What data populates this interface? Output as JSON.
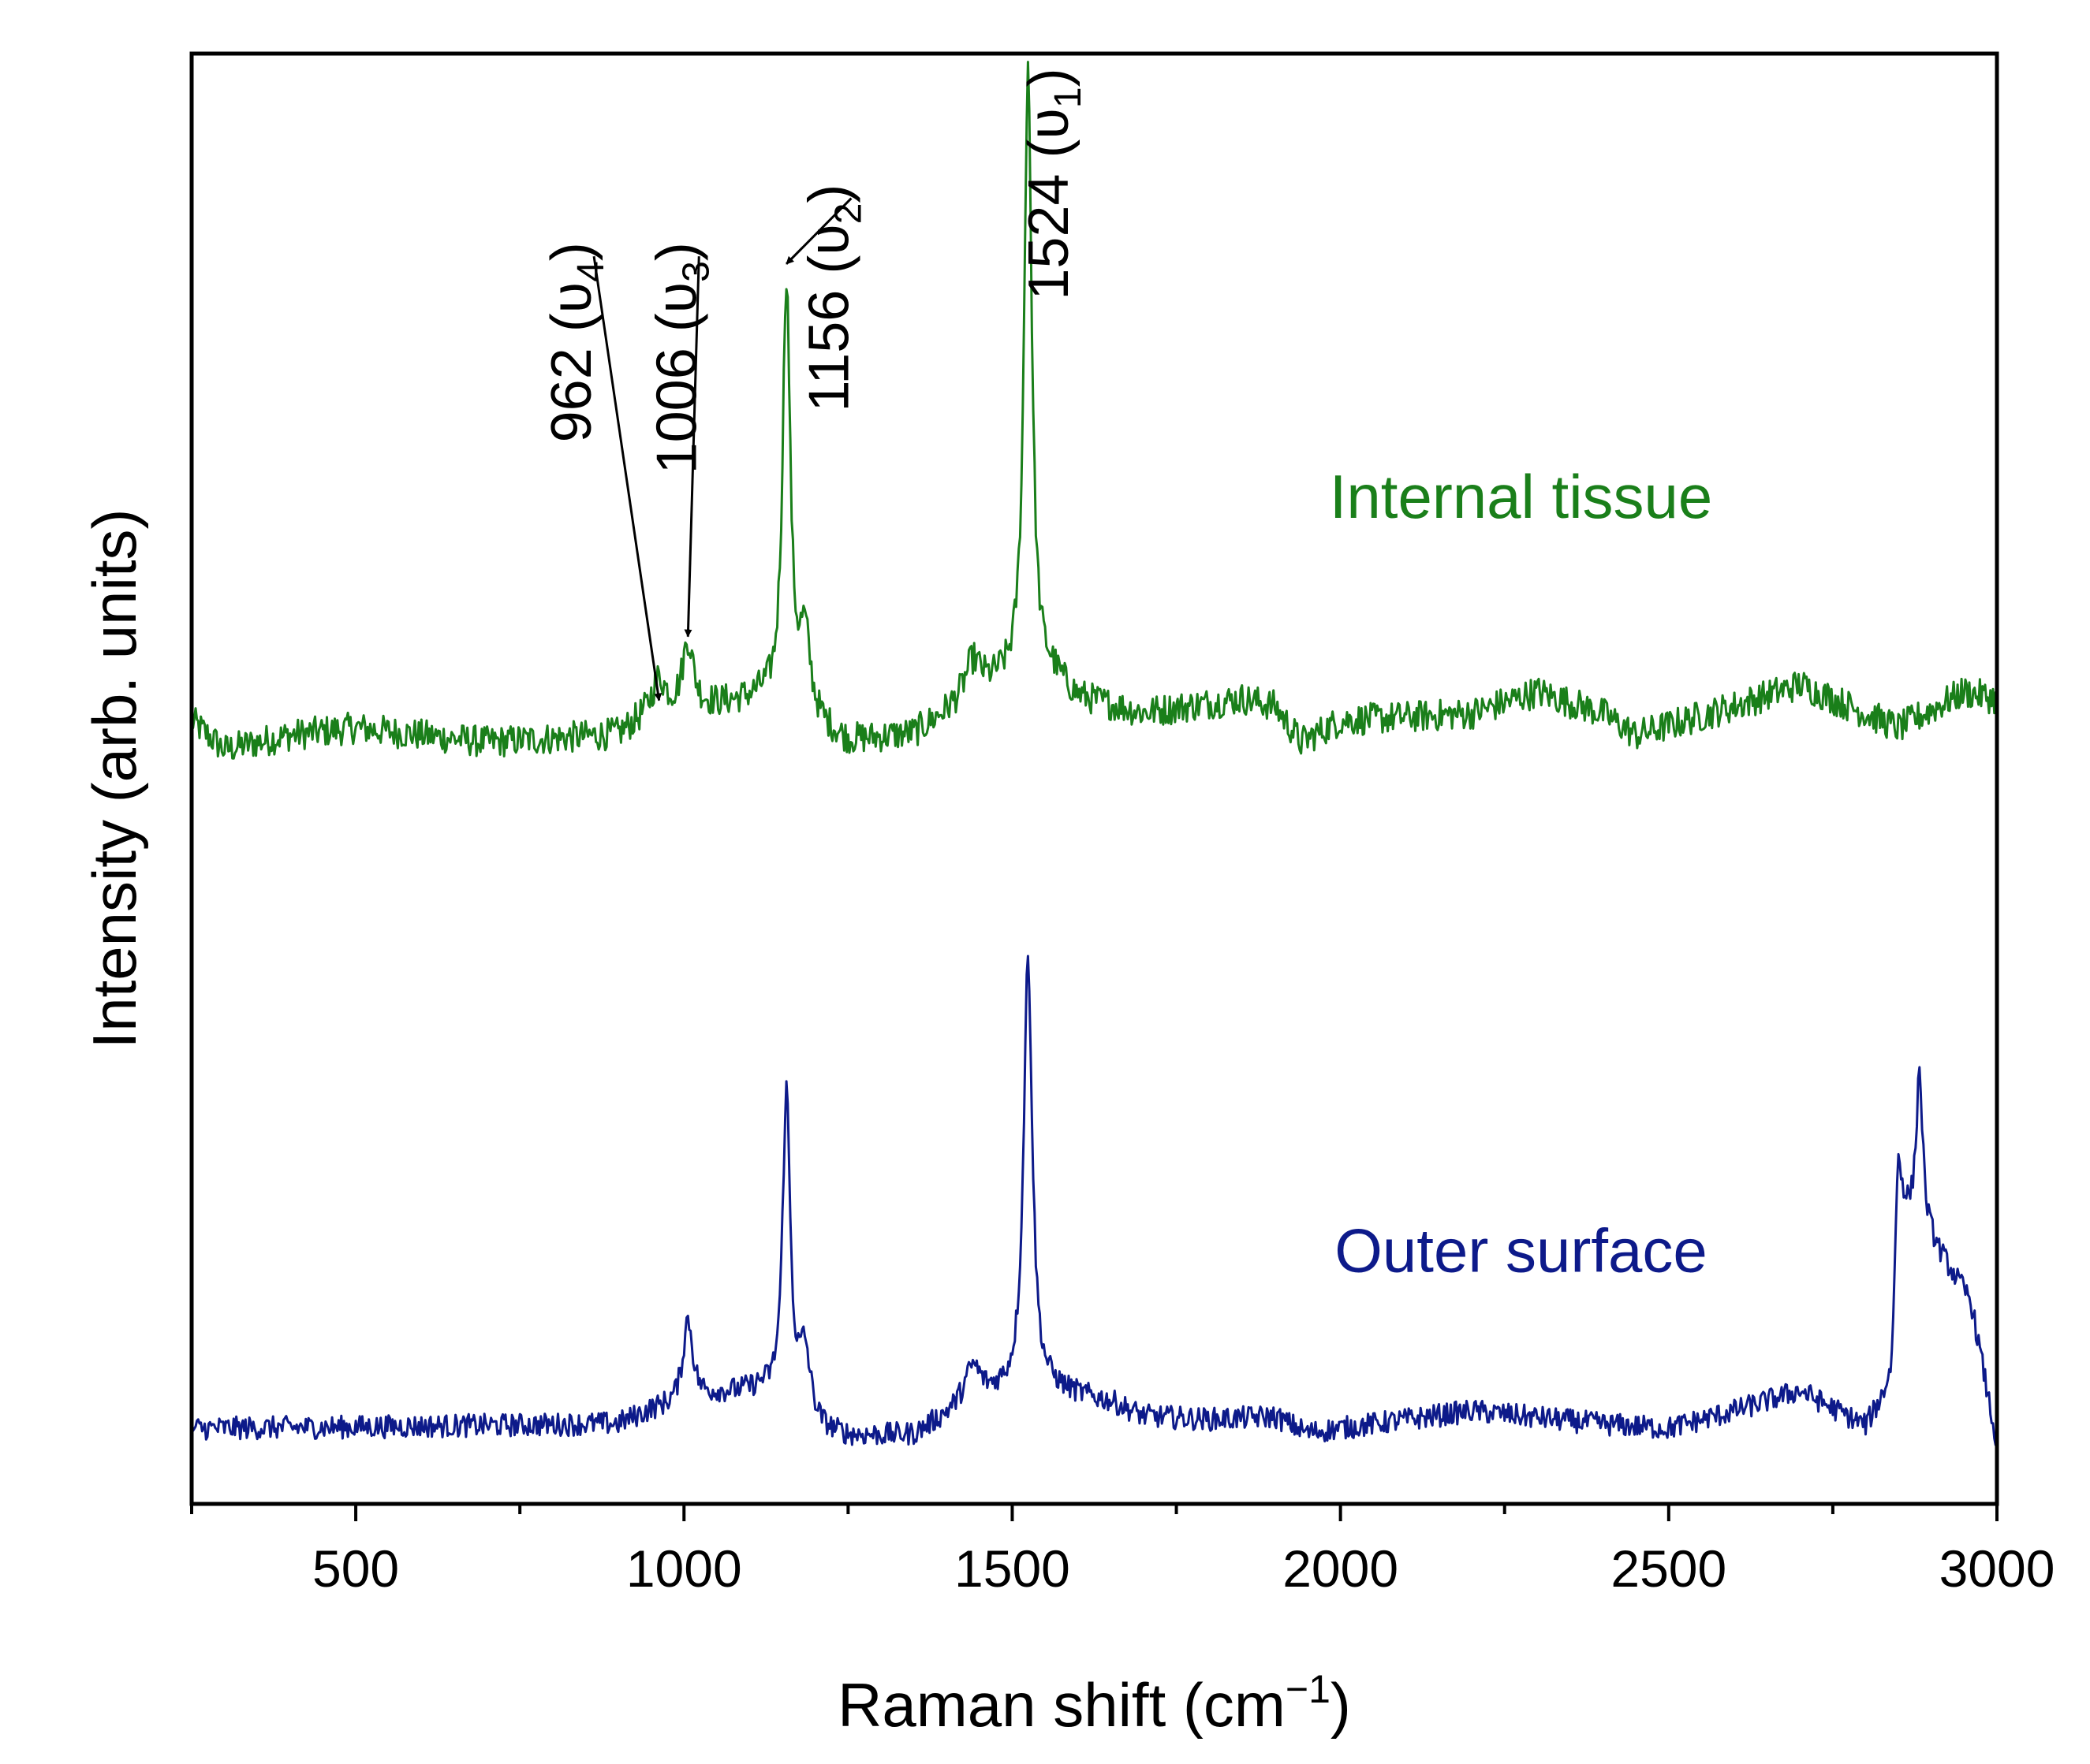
{
  "chart_data": {
    "type": "line",
    "xlabel": "Raman shift (cm",
    "xlabel_superscript": "−1",
    "xlabel_close": ")",
    "ylabel": "Intensity (arb. units)",
    "xlim": [
      250,
      3000
    ],
    "ylim": [
      0,
      100
    ],
    "x_ticks": [
      500,
      1000,
      1500,
      2000,
      2500,
      3000
    ],
    "y_ticks_shown": false,
    "colors": {
      "internal": "#1a7f1a",
      "outer": "#0d1a8a",
      "axis": "#000000"
    },
    "series": [
      {
        "name": "Internal tissue",
        "color": "#1a7f1a",
        "baseline_points": [
          [
            250,
            54
          ],
          [
            300,
            52
          ],
          [
            400,
            53
          ],
          [
            500,
            53.5
          ],
          [
            700,
            52.5
          ],
          [
            900,
            53
          ],
          [
            950,
            54.5
          ],
          [
            1050,
            55
          ],
          [
            1120,
            55.5
          ],
          [
            1250,
            52.5
          ],
          [
            1350,
            53
          ],
          [
            1420,
            55
          ],
          [
            1480,
            56.5
          ],
          [
            1560,
            57
          ],
          [
            1600,
            55.5
          ],
          [
            1700,
            54.5
          ],
          [
            1850,
            55.5
          ],
          [
            1900,
            55
          ],
          [
            1940,
            52.5
          ],
          [
            2000,
            54
          ],
          [
            2200,
            54.5
          ],
          [
            2300,
            56
          ],
          [
            2400,
            54.5
          ],
          [
            2450,
            53
          ],
          [
            2600,
            55
          ],
          [
            2700,
            56.5
          ],
          [
            2850,
            53.5
          ],
          [
            2950,
            56
          ],
          [
            3000,
            55.5
          ]
        ],
        "peaks": [
          {
            "x": 962,
            "height": 2.2,
            "width": 12
          },
          {
            "x": 1006,
            "height": 4.6,
            "width": 10
          },
          {
            "x": 1156,
            "height": 29.5,
            "width": 7
          },
          {
            "x": 1184,
            "height": 5.5,
            "width": 10
          },
          {
            "x": 1440,
            "height": 2.5,
            "width": 15
          },
          {
            "x": 1524,
            "height": 42.5,
            "width": 7
          }
        ],
        "noise": 1.1
      },
      {
        "name": "Outer surface",
        "color": "#0d1a8a",
        "baseline_points": [
          [
            250,
            5.2
          ],
          [
            500,
            5.3
          ],
          [
            900,
            5.5
          ],
          [
            950,
            6.4
          ],
          [
            1050,
            7.5
          ],
          [
            1120,
            7.8
          ],
          [
            1210,
            5
          ],
          [
            1250,
            4.6
          ],
          [
            1350,
            4.7
          ],
          [
            1420,
            6.5
          ],
          [
            1480,
            7.5
          ],
          [
            1560,
            7.8
          ],
          [
            1650,
            7
          ],
          [
            1700,
            6
          ],
          [
            1800,
            5.8
          ],
          [
            1900,
            6
          ],
          [
            1950,
            4.9
          ],
          [
            2000,
            5.2
          ],
          [
            2200,
            6.4
          ],
          [
            2400,
            5.5
          ],
          [
            2500,
            5.2
          ],
          [
            2600,
            6.4
          ],
          [
            2700,
            7.8
          ],
          [
            2800,
            5.3
          ],
          [
            2840,
            8
          ],
          [
            2850,
            20
          ],
          [
            2900,
            18
          ],
          [
            2960,
            14
          ],
          [
            3000,
            4
          ]
        ],
        "peaks": [
          {
            "x": 1006,
            "height": 5.7,
            "width": 9
          },
          {
            "x": 1156,
            "height": 21.5,
            "width": 7
          },
          {
            "x": 1184,
            "height": 4.5,
            "width": 10
          },
          {
            "x": 1440,
            "height": 2.5,
            "width": 15
          },
          {
            "x": 1524,
            "height": 30,
            "width": 8
          },
          {
            "x": 2848,
            "height": 4,
            "width": 8
          },
          {
            "x": 2882,
            "height": 11,
            "width": 6
          }
        ],
        "noise": 0.8
      }
    ],
    "series_labels": [
      {
        "text": "Internal tissue",
        "series": 0,
        "x": 2275,
        "y": 68
      },
      {
        "text": "Outer surface",
        "series": 1,
        "x": 2275,
        "y": 16
      }
    ],
    "annotations": [
      {
        "number": "962 (υ",
        "subscript": "4",
        "close": ")",
        "x": 962,
        "y": 55.4,
        "text_x": 858,
        "text_y": 87
      },
      {
        "number": "1006 (υ",
        "subscript": "3",
        "close": ")",
        "x": 1006,
        "y": 59.8,
        "text_x": 1018,
        "text_y": 87
      },
      {
        "number": "1156 (υ",
        "subscript": "2",
        "close": ")",
        "x": 1156,
        "y": 85.5,
        "text_x": 1250,
        "text_y": 91
      },
      {
        "number": "1524 (υ",
        "subscript": "1",
        "close": ")",
        "x": 1524,
        "y": 99,
        "text_x": 1585,
        "text_y": 99
      }
    ]
  }
}
